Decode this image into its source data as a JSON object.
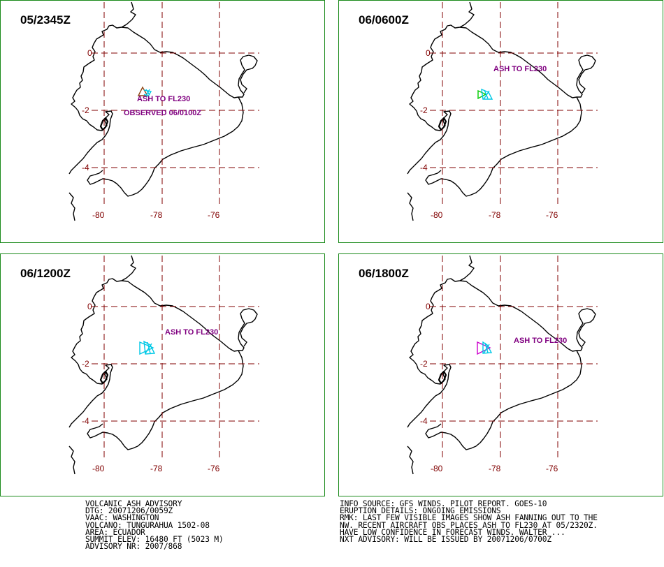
{
  "panels": [
    {
      "time": "05/2345Z",
      "labels": [
        {
          "text": "ASH TO FL230",
          "color": "#800080"
        },
        {
          "text": "OBSERVED 06/0100Z",
          "color": "#800080"
        }
      ],
      "polygons": [
        {
          "color": "#8b4513"
        },
        {
          "color": "#00c8e6"
        }
      ]
    },
    {
      "time": "06/0600Z",
      "labels": [
        {
          "text": "ASH TO FL230",
          "color": "#800080"
        }
      ],
      "polygons": [
        {
          "color": "#00cc00"
        },
        {
          "color": "#00c8e6"
        }
      ]
    },
    {
      "time": "06/1200Z",
      "labels": [
        {
          "text": "ASH TO FL230",
          "color": "#800080"
        }
      ],
      "polygons": [
        {
          "color": "#00c8e6"
        },
        {
          "color": "#00c8e6"
        }
      ]
    },
    {
      "time": "06/1800Z",
      "labels": [
        {
          "text": "ASH TO FL230",
          "color": "#800080"
        }
      ],
      "polygons": [
        {
          "color": "#cc00cc"
        },
        {
          "color": "#00c8e6"
        }
      ]
    }
  ],
  "grid": {
    "lat_labels": [
      "0",
      "-2",
      "-4"
    ],
    "lon_labels": [
      "-80",
      "-78",
      "-76"
    ],
    "color": "#800000"
  },
  "advisory_left": [
    "VOLCANIC ASH ADVISORY",
    "DTG: 20071206/0059Z",
    "VAAC: WASHINGTON",
    "VOLCANO: TUNGURAHUA 1502-08",
    "AREA: ECUADOR",
    "SUMMIT ELEV: 16480 FT (5023 M)",
    "ADVISORY NR: 2007/868"
  ],
  "advisory_right": [
    "INFO SOURCE: GFS WINDS. PILOT REPORT. GOES-10",
    "ERUPTION DETAILS: ONGOING EMISSIONS",
    "RMK: LAST FEW VISIBLE IMAGES SHOW ASH FANNING OUT TO THE",
    "NW. RECENT AIRCRAFT OBS PLACES ASH TO FL230 AT 05/2320Z.",
    "HAVE LOW CONFIDENCE IN FORECAST WINDS. WALTER ...",
    "NXT ADVISORY: WILL BE ISSUED BY 20071206/0700Z"
  ]
}
